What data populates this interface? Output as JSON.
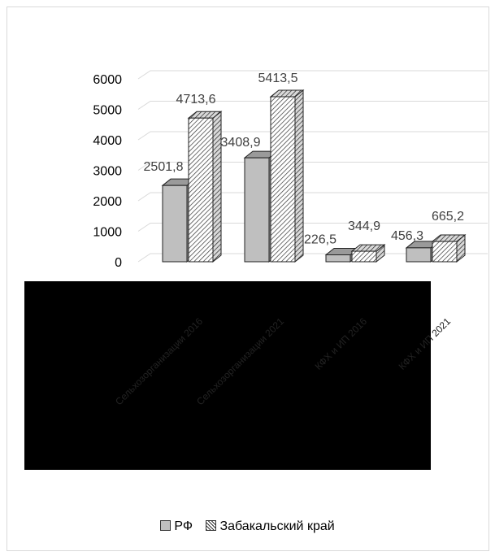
{
  "chart_data": {
    "type": "bar",
    "three_d": true,
    "categories": [
      "Сельхозорганизации 2016",
      "Сельхозорганизации 2021",
      "КФХ и ИП 2016",
      "КФХ и ИП 2021"
    ],
    "series": [
      {
        "name": "РФ",
        "values": [
          2501.8,
          3408.9,
          226.5,
          456.3
        ],
        "labels": [
          "2501,8",
          "3408,9",
          "226,5",
          "456,3"
        ],
        "color": "#bfbfbf",
        "pattern": "solid"
      },
      {
        "name": "Забакальский край",
        "values": [
          4713.6,
          5413.5,
          344.9,
          665.2
        ],
        "labels": [
          "4713,6",
          "5413,5",
          "344,9",
          "665,2"
        ],
        "color": "#ffffff",
        "pattern": "diagonal-hatch"
      }
    ],
    "y_ticks": [
      "0",
      "1000",
      "2000",
      "3000",
      "4000",
      "5000",
      "6000"
    ],
    "ylim": [
      0,
      6000
    ],
    "grid": true,
    "legend_position": "bottom",
    "category_labels_obscured": true
  }
}
